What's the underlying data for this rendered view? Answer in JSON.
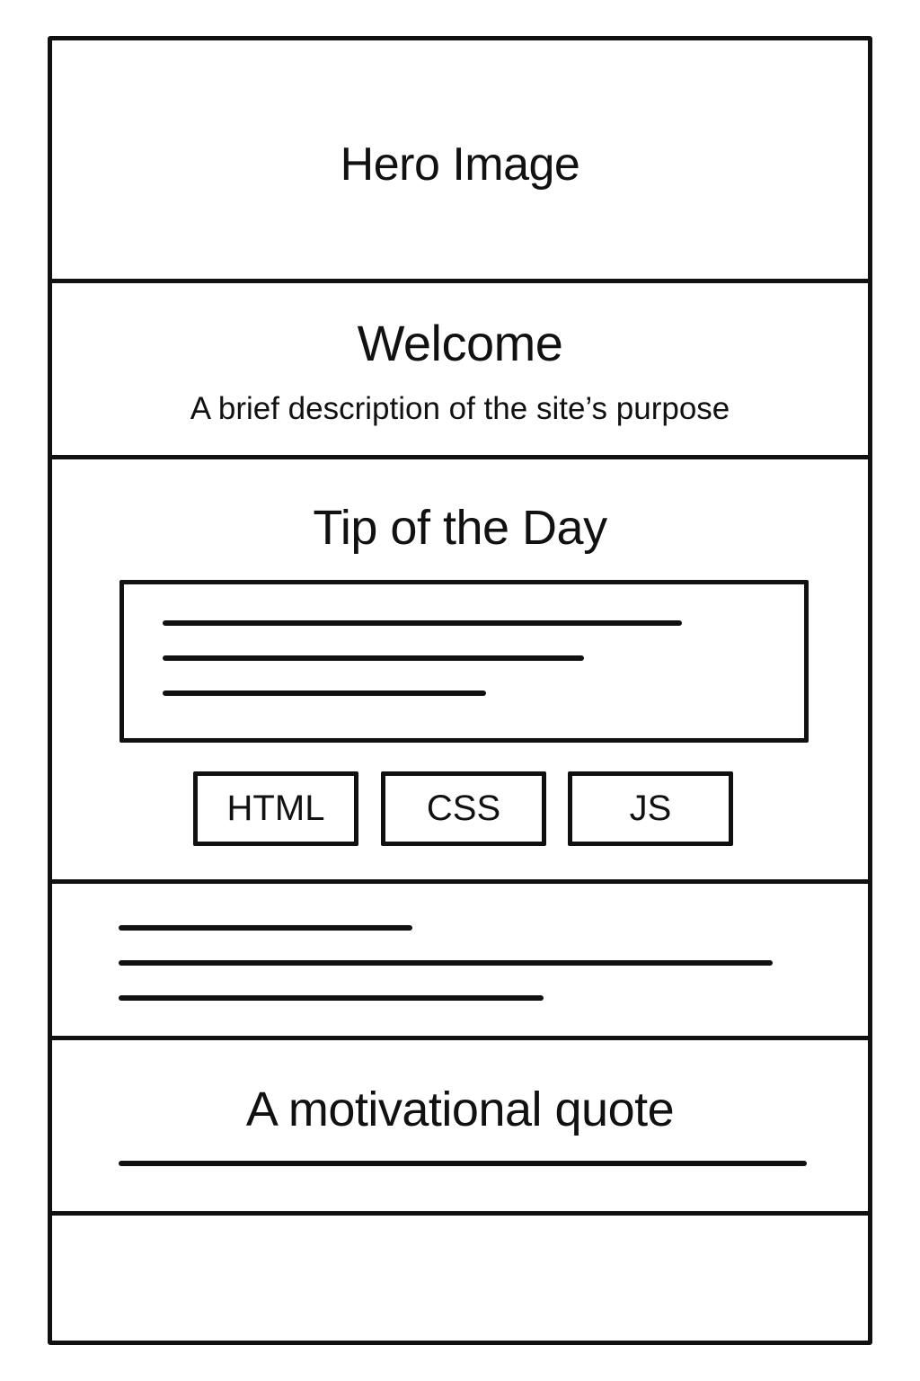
{
  "hero": {
    "label": "Hero Image"
  },
  "welcome": {
    "title": "Welcome",
    "description": "A brief description of the site’s purpose"
  },
  "tip": {
    "title": "Tip of the Day",
    "tags": [
      "HTML",
      "CSS",
      "JS"
    ]
  },
  "quote": {
    "text": "A motivational quote"
  }
}
